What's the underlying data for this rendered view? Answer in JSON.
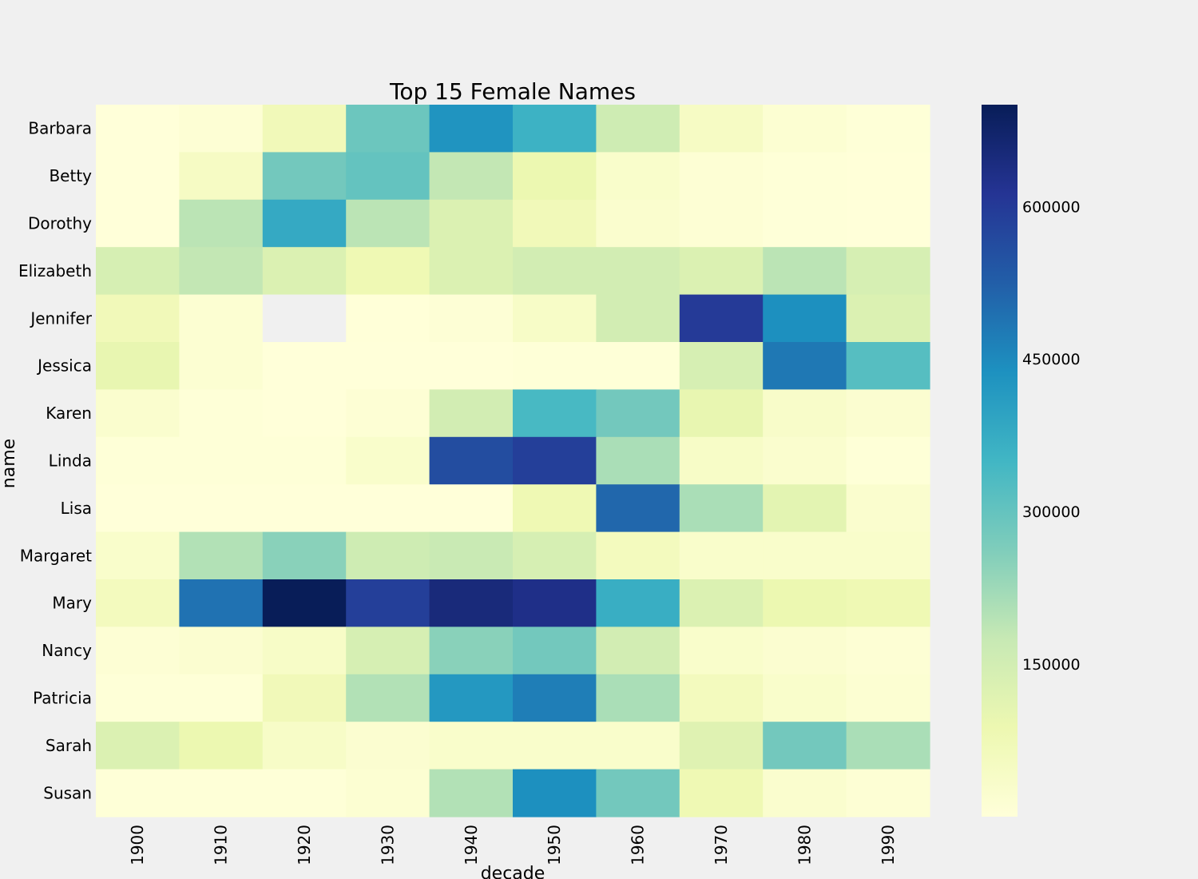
{
  "chart_data": {
    "type": "heatmap",
    "title": "Top 15 Female Names",
    "xlabel": "decade",
    "ylabel": "name",
    "x": [
      "1900",
      "1910",
      "1920",
      "1930",
      "1940",
      "1950",
      "1960",
      "1970",
      "1980",
      "1990"
    ],
    "y": [
      "Barbara",
      "Betty",
      "Dorothy",
      "Elizabeth",
      "Jennifer",
      "Jessica",
      "Karen",
      "Linda",
      "Lisa",
      "Margaret",
      "Mary",
      "Nancy",
      "Patricia",
      "Sarah",
      "Susan"
    ],
    "values": [
      [
        0,
        10000,
        70000,
        290000,
        430000,
        360000,
        160000,
        45000,
        15000,
        5000
      ],
      [
        0,
        45000,
        280000,
        300000,
        180000,
        90000,
        30000,
        10000,
        5000,
        2000
      ],
      [
        0,
        190000,
        380000,
        190000,
        130000,
        70000,
        25000,
        10000,
        3000,
        1000
      ],
      [
        140000,
        180000,
        130000,
        80000,
        130000,
        150000,
        150000,
        130000,
        190000,
        140000
      ],
      [
        70000,
        15000,
        null,
        2000,
        8000,
        40000,
        150000,
        600000,
        440000,
        130000
      ],
      [
        100000,
        15000,
        0,
        0,
        0,
        5000,
        5000,
        140000,
        480000,
        320000
      ],
      [
        25000,
        5000,
        0,
        10000,
        150000,
        340000,
        280000,
        100000,
        35000,
        20000
      ],
      [
        5000,
        5000,
        5000,
        30000,
        560000,
        590000,
        210000,
        40000,
        25000,
        5000
      ],
      [
        0,
        0,
        0,
        0,
        0,
        80000,
        510000,
        210000,
        110000,
        25000
      ],
      [
        30000,
        200000,
        250000,
        160000,
        170000,
        140000,
        60000,
        30000,
        30000,
        30000
      ],
      [
        60000,
        490000,
        700000,
        590000,
        650000,
        630000,
        370000,
        130000,
        90000,
        80000
      ],
      [
        10000,
        20000,
        40000,
        140000,
        250000,
        280000,
        150000,
        30000,
        20000,
        10000
      ],
      [
        5000,
        5000,
        70000,
        200000,
        420000,
        470000,
        210000,
        60000,
        30000,
        15000
      ],
      [
        130000,
        90000,
        40000,
        20000,
        30000,
        30000,
        30000,
        120000,
        280000,
        210000
      ],
      [
        5000,
        5000,
        5000,
        15000,
        200000,
        440000,
        280000,
        80000,
        25000,
        10000
      ]
    ],
    "colorbar": {
      "ticks": [
        150000,
        300000,
        450000,
        600000
      ],
      "tick_labels": [
        "150000",
        "300000",
        "450000",
        "600000"
      ],
      "min": 0,
      "max": 700000
    },
    "colormap": "YlGnBu",
    "missing_color": "#f0f0f0",
    "grid": false
  }
}
